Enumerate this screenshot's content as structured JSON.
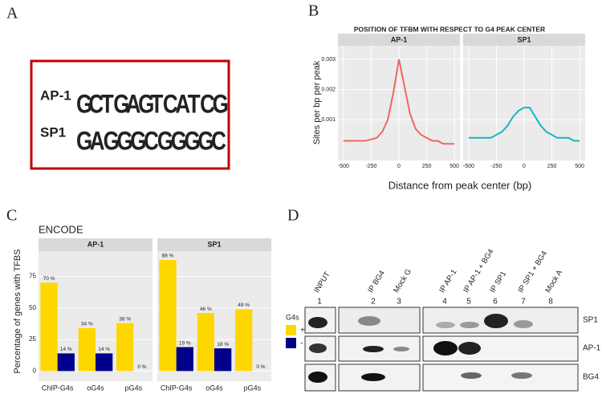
{
  "panel_labels": [
    "A",
    "B",
    "C",
    "D"
  ],
  "panel_a": {
    "motifs": [
      {
        "name": "AP-1",
        "letters": [
          "G",
          "C",
          "T",
          "G",
          "A",
          "G",
          "T",
          "C",
          "A",
          "T",
          "C",
          "G"
        ]
      },
      {
        "name": "SP1",
        "letters": [
          "G",
          "A",
          "G",
          "G",
          "G",
          "C",
          "G",
          "G",
          "G",
          "G",
          "C"
        ]
      }
    ]
  },
  "chart_data": [
    {
      "type": "line",
      "title": "POSITION OF TFBM WITH RESPECT TO G4 PEAK CENTER",
      "x_label": "Distance from peak center (bp)",
      "y_label": "Sites per bp per peak",
      "xlim": [
        -550,
        550
      ],
      "xticks": [
        -500,
        -250,
        0,
        250,
        500
      ],
      "ylim": [
        -0.00035,
        0.00345
      ],
      "yticks": [
        0.001,
        0.002,
        0.003
      ],
      "grid": true,
      "facets": [
        {
          "label": "AP-1",
          "series": [
            {
              "color": "#f0675f",
              "x": [
                -500,
                -450,
                -400,
                -350,
                -300,
                -250,
                -200,
                -150,
                -100,
                -50,
                0,
                50,
                100,
                150,
                200,
                250,
                300,
                350,
                400,
                450,
                500
              ],
              "values": [
                0.0003,
                0.0003,
                0.0003,
                0.0003,
                0.0003,
                0.00035,
                0.0004,
                0.0006,
                0.001,
                0.0019,
                0.003,
                0.0021,
                0.0012,
                0.0007,
                0.0005,
                0.0004,
                0.0003,
                0.0003,
                0.0002,
                0.0002,
                0.0002
              ]
            }
          ]
        },
        {
          "label": "SP1",
          "series": [
            {
              "color": "#19b6bd",
              "x": [
                -500,
                -450,
                -400,
                -350,
                -300,
                -250,
                -200,
                -150,
                -100,
                -50,
                0,
                50,
                100,
                150,
                200,
                250,
                300,
                350,
                400,
                450,
                500
              ],
              "values": [
                0.0004,
                0.0004,
                0.0004,
                0.0004,
                0.0004,
                0.0005,
                0.0006,
                0.0008,
                0.0011,
                0.0013,
                0.0014,
                0.0014,
                0.0011,
                0.0008,
                0.0006,
                0.0005,
                0.0004,
                0.0004,
                0.0004,
                0.0003,
                0.0003
              ]
            }
          ]
        }
      ]
    },
    {
      "type": "bar",
      "title": "ENCODE",
      "y_label": "Percentage of genes with TFBS",
      "categories": [
        "ChIP-G4s",
        "oG4s",
        "pG4s"
      ],
      "legend_title": "G4s",
      "ylim": [
        -8,
        95
      ],
      "yticks": [
        0,
        25,
        50,
        75
      ],
      "grid": true,
      "facets": [
        {
          "label": "AP-1",
          "series": [
            {
              "name": "+",
              "color": "#ffd700",
              "values": [
                70,
                34,
                38
              ],
              "value_labels": [
                "70 %",
                "34 %",
                "38 %"
              ]
            },
            {
              "name": "-",
              "color": "#00008b",
              "values": [
                14,
                14,
                0
              ],
              "value_labels": [
                "14 %",
                "14 %",
                "0 %"
              ]
            }
          ]
        },
        {
          "label": "SP1",
          "series": [
            {
              "name": "+",
              "color": "#ffd700",
              "values": [
                88,
                46,
                49
              ],
              "value_labels": [
                "88 %",
                "46 %",
                "49 %"
              ]
            },
            {
              "name": "-",
              "color": "#00008b",
              "values": [
                19,
                18,
                0
              ],
              "value_labels": [
                "19 %",
                "18 %",
                "0 %"
              ]
            }
          ]
        }
      ]
    }
  ],
  "panel_d": {
    "lanes": [
      "INPUT",
      "IP BG4",
      "Mock G",
      "IP AP-1",
      "IP AP-1 + BG4",
      "IP SP1",
      "IP SP1 + BG4",
      "Mock A"
    ],
    "lane_numbers": [
      "1",
      "2",
      "3",
      "4",
      "5",
      "6",
      "7",
      "8"
    ],
    "rows": [
      "SP1",
      "AP-1",
      "BG4"
    ]
  }
}
